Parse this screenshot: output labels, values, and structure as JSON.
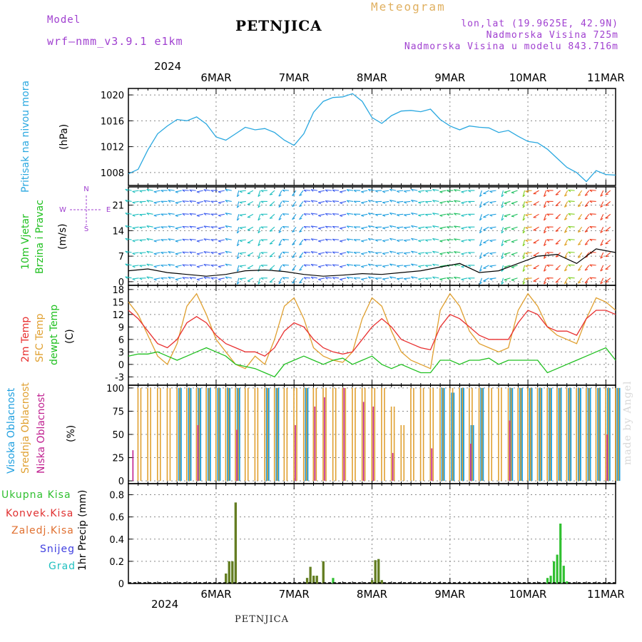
{
  "header": {
    "model_label": "Model",
    "model_name": "wrf—nmm_v3.9.1  e1km",
    "title": "PETNJICA",
    "meteogram": "Meteogram",
    "lonlat": "lon,lat (19.9625E, 42.9N)",
    "elevation": "Nadmorska Visina 725m",
    "elevation_model": "Nadmorska Visina u modelu 843.716m"
  },
  "footer": {
    "station": "PETNJICA"
  },
  "watermark": "made by Angel",
  "x_axis": {
    "year_label": "2024",
    "days": [
      "6MAR",
      "7MAR",
      "8MAR",
      "9MAR",
      "10MAR",
      "11MAR"
    ],
    "start_hour": -15,
    "end_hour": 135
  },
  "colors": {
    "pressure": "#2aa8e0",
    "temp2m": "#e83030",
    "sfc_temp": "#e0a030",
    "dewpoint": "#20c020",
    "high_cloud": "#20a0e0",
    "mid_cloud": "#e0a030",
    "low_cloud": "#c02090",
    "total_precip": "#30c030",
    "conv_precip": "#e03030",
    "frozen_precip": "#e07030",
    "snow": "#4040e0",
    "hail": "#20c0c0"
  },
  "chart_data": [
    {
      "type": "line",
      "panel": "pressure",
      "labels": [
        "Pritisak na nivou mora",
        "(hPa)"
      ],
      "ylim": [
        1006,
        1021
      ],
      "yticks": [
        1008,
        1012,
        1016,
        1020
      ],
      "series": [
        {
          "x": [
            -15,
            -12,
            -9,
            -6,
            -3,
            0,
            3,
            6,
            9,
            12,
            15,
            18,
            21,
            24,
            27,
            30,
            33,
            36,
            39,
            42,
            45,
            48,
            51,
            54,
            57,
            60,
            63,
            66,
            69,
            72,
            75,
            78,
            81,
            84,
            87,
            90,
            93,
            96,
            99,
            102,
            105,
            108,
            111,
            114,
            117,
            120,
            123,
            126,
            129,
            132,
            135
          ],
          "values": [
            1007.8,
            1008.5,
            1011.5,
            1014,
            1015.2,
            1016.2,
            1016,
            1016.6,
            1015.5,
            1013.5,
            1013,
            1014,
            1015,
            1014.6,
            1014.8,
            1014.2,
            1013,
            1012.2,
            1014,
            1017.3,
            1019,
            1019.6,
            1019.7,
            1020.2,
            1019,
            1016.5,
            1015.6,
            1016.8,
            1017.5,
            1017.6,
            1017.4,
            1017.8,
            1016.2,
            1015.2,
            1014.6,
            1015.2,
            1015,
            1014.9,
            1014.2,
            1014.5,
            1013.6,
            1012.8,
            1012.6,
            1011.6,
            1010.2,
            1008.8,
            1008,
            1006.6,
            1008.3,
            1007.7,
            1007.6
          ]
        }
      ]
    },
    {
      "type": "scatter",
      "panel": "wind",
      "labels": [
        "10m Vjetar",
        "Brzina i Pravac",
        "(m/s)"
      ],
      "ylim": [
        -1,
        26
      ],
      "yticks": [
        0,
        7,
        14,
        21
      ],
      "direction_legend": [
        "W",
        "E",
        "N",
        "S"
      ],
      "series": [
        {
          "name": "speed",
          "x": [
            -15,
            -9,
            -3,
            3,
            9,
            15,
            21,
            27,
            33,
            39,
            45,
            51,
            57,
            63,
            69,
            75,
            81,
            87,
            93,
            99,
            105,
            111,
            117,
            123,
            129,
            135
          ],
          "values": [
            3,
            3.5,
            2.5,
            2,
            1.5,
            2,
            3,
            3.2,
            2.8,
            2,
            1.5,
            1.8,
            2.2,
            2,
            2.5,
            3,
            4,
            5,
            2.5,
            3,
            5,
            7,
            7.5,
            5,
            9,
            8
          ]
        }
      ]
    },
    {
      "type": "line",
      "panel": "temperature",
      "labels": [
        "2m Temp",
        "SFC Temp",
        "dewpt Temp",
        "(C)"
      ],
      "ylim": [
        -5,
        19
      ],
      "yticks": [
        -3,
        0,
        3,
        6,
        9,
        12,
        15,
        18
      ],
      "series": [
        {
          "name": "2m Temp",
          "x": [
            -15,
            -12,
            -9,
            -6,
            -3,
            0,
            3,
            6,
            9,
            12,
            15,
            18,
            21,
            24,
            27,
            30,
            33,
            36,
            39,
            42,
            45,
            48,
            51,
            54,
            57,
            60,
            63,
            66,
            69,
            72,
            75,
            78,
            81,
            84,
            87,
            90,
            93,
            96,
            99,
            102,
            105,
            108,
            111,
            114,
            117,
            120,
            123,
            126,
            129,
            132,
            135
          ],
          "values": [
            13,
            11,
            8,
            5,
            4,
            6,
            10,
            11.5,
            10,
            7,
            5,
            4,
            3,
            3,
            2,
            4,
            8,
            10,
            9,
            6,
            4,
            3,
            2.5,
            3,
            6,
            9,
            11,
            9,
            6,
            5,
            4,
            3.5,
            9,
            12,
            11,
            9,
            7,
            6,
            6,
            6,
            10,
            13,
            12,
            9,
            8,
            8,
            7,
            11,
            13,
            13,
            12
          ]
        },
        {
          "name": "SFC Temp",
          "x": [
            -15,
            -12,
            -9,
            -6,
            -3,
            0,
            3,
            6,
            9,
            12,
            15,
            18,
            21,
            24,
            27,
            30,
            33,
            36,
            39,
            42,
            45,
            48,
            51,
            54,
            57,
            60,
            63,
            66,
            69,
            72,
            75,
            78,
            81,
            84,
            87,
            90,
            93,
            96,
            99,
            102,
            105,
            108,
            111,
            114,
            117,
            120,
            123,
            126,
            129,
            132,
            135
          ],
          "values": [
            15,
            12,
            7,
            2,
            0,
            5,
            14,
            17,
            12,
            6,
            3,
            0,
            -1,
            2,
            0,
            6,
            14,
            16,
            11,
            4,
            2,
            1,
            0.5,
            3,
            11,
            16,
            14,
            8,
            3,
            1,
            0,
            -1,
            13,
            17,
            14,
            8,
            5,
            4,
            3,
            4,
            13,
            17,
            14,
            9,
            7,
            6,
            5,
            11,
            16,
            15,
            13
          ]
        },
        {
          "name": "dewpt Temp",
          "x": [
            -15,
            -12,
            -9,
            -6,
            -3,
            0,
            3,
            6,
            9,
            12,
            15,
            18,
            21,
            24,
            27,
            30,
            33,
            36,
            39,
            42,
            45,
            48,
            51,
            54,
            57,
            60,
            63,
            66,
            69,
            72,
            75,
            78,
            81,
            84,
            87,
            90,
            93,
            96,
            99,
            102,
            105,
            108,
            111,
            114,
            117,
            120,
            123,
            126,
            129,
            132,
            135
          ],
          "values": [
            2,
            2.5,
            2.5,
            3,
            2,
            1,
            2,
            3,
            4,
            3,
            2,
            0,
            -0.5,
            -1,
            -2,
            -3,
            0,
            1,
            2,
            1,
            0,
            1,
            1.5,
            0,
            1,
            2,
            0,
            -1,
            0,
            -1,
            -2,
            -2,
            1,
            1,
            0,
            1,
            1,
            1.5,
            0,
            1,
            1,
            1,
            1,
            -2,
            -1,
            0,
            1,
            2,
            3,
            4,
            1
          ]
        }
      ]
    },
    {
      "type": "bar",
      "panel": "clouds",
      "labels": [
        "Visoka Oblacnost",
        "Srednja Oblacnost",
        "Niska Oblacnost",
        "(%)"
      ],
      "ylim": [
        -3,
        103
      ],
      "yticks": [
        0,
        25,
        50,
        75,
        100
      ],
      "series": [
        {
          "name": "Visoka Oblacnost",
          "x": [
            0,
            3,
            6,
            9,
            12,
            15,
            18,
            27,
            30,
            39,
            81,
            84,
            87,
            90,
            93,
            102,
            105,
            108,
            111,
            114,
            117,
            120,
            123,
            126,
            129,
            132,
            135
          ],
          "values": [
            100,
            100,
            100,
            100,
            100,
            100,
            100,
            100,
            100,
            100,
            100,
            95,
            100,
            60,
            100,
            100,
            100,
            100,
            100,
            100,
            100,
            100,
            100,
            100,
            100,
            100,
            100
          ]
        },
        {
          "name": "Srednja Oblacnost",
          "x": [
            -12,
            -9,
            -6,
            -3,
            0,
            3,
            6,
            9,
            12,
            15,
            18,
            21,
            24,
            27,
            30,
            33,
            36,
            39,
            42,
            45,
            48,
            51,
            54,
            57,
            60,
            63,
            66,
            69,
            72,
            75,
            78,
            81,
            84,
            87,
            90,
            93,
            96,
            99,
            102,
            105,
            108,
            111,
            114,
            117,
            120,
            123,
            126,
            129,
            132,
            135
          ],
          "values": [
            100,
            100,
            100,
            100,
            100,
            100,
            100,
            100,
            100,
            100,
            100,
            100,
            100,
            100,
            100,
            100,
            100,
            100,
            100,
            100,
            100,
            100,
            100,
            100,
            100,
            100,
            80,
            60,
            100,
            100,
            100,
            100,
            100,
            100,
            100,
            100,
            100,
            100,
            100,
            100,
            100,
            100,
            100,
            100,
            100,
            100,
            100,
            100,
            100,
            100
          ]
        },
        {
          "name": "Niska Oblacnost",
          "x": [
            -14,
            6,
            18,
            36,
            42,
            45,
            51,
            57,
            60,
            66,
            78,
            90,
            102,
            132
          ],
          "values": [
            33,
            60,
            55,
            60,
            80,
            90,
            100,
            85,
            80,
            30,
            35,
            40,
            65,
            50
          ]
        }
      ]
    },
    {
      "type": "bar",
      "panel": "precipitation",
      "labels": [
        "1hr Precip (mm)"
      ],
      "ylim": [
        0,
        0.9
      ],
      "yticks": [
        0,
        0.2,
        0.4,
        0.6,
        0.8
      ],
      "series": [
        {
          "name": "Ukupna Kisa",
          "x": [
            15,
            16,
            17,
            18,
            40,
            41,
            42,
            43,
            45,
            48,
            60,
            61,
            62,
            63,
            114,
            115,
            116,
            117,
            118,
            119,
            120
          ],
          "values": [
            0.09,
            0.2,
            0.2,
            0.73,
            0.05,
            0.15,
            0.07,
            0.07,
            0.2,
            0.05,
            0.03,
            0.21,
            0.22,
            0.03,
            0.05,
            0.07,
            0.2,
            0.26,
            0.54,
            0.16,
            0.02
          ]
        },
        {
          "name": "Konvek.Kisa",
          "x": [
            15,
            16,
            17,
            18,
            40,
            41,
            42,
            43,
            45,
            60,
            61,
            62,
            63
          ],
          "values": [
            0.09,
            0.2,
            0.2,
            0.73,
            0.05,
            0.15,
            0.07,
            0.07,
            0.2,
            0.03,
            0.21,
            0.22,
            0.03
          ]
        },
        {
          "name": "Zaledj.Kisa",
          "x": [],
          "values": []
        },
        {
          "name": "Snijeg",
          "x": [],
          "values": []
        },
        {
          "name": "Grad",
          "x": [],
          "values": []
        }
      ]
    }
  ]
}
